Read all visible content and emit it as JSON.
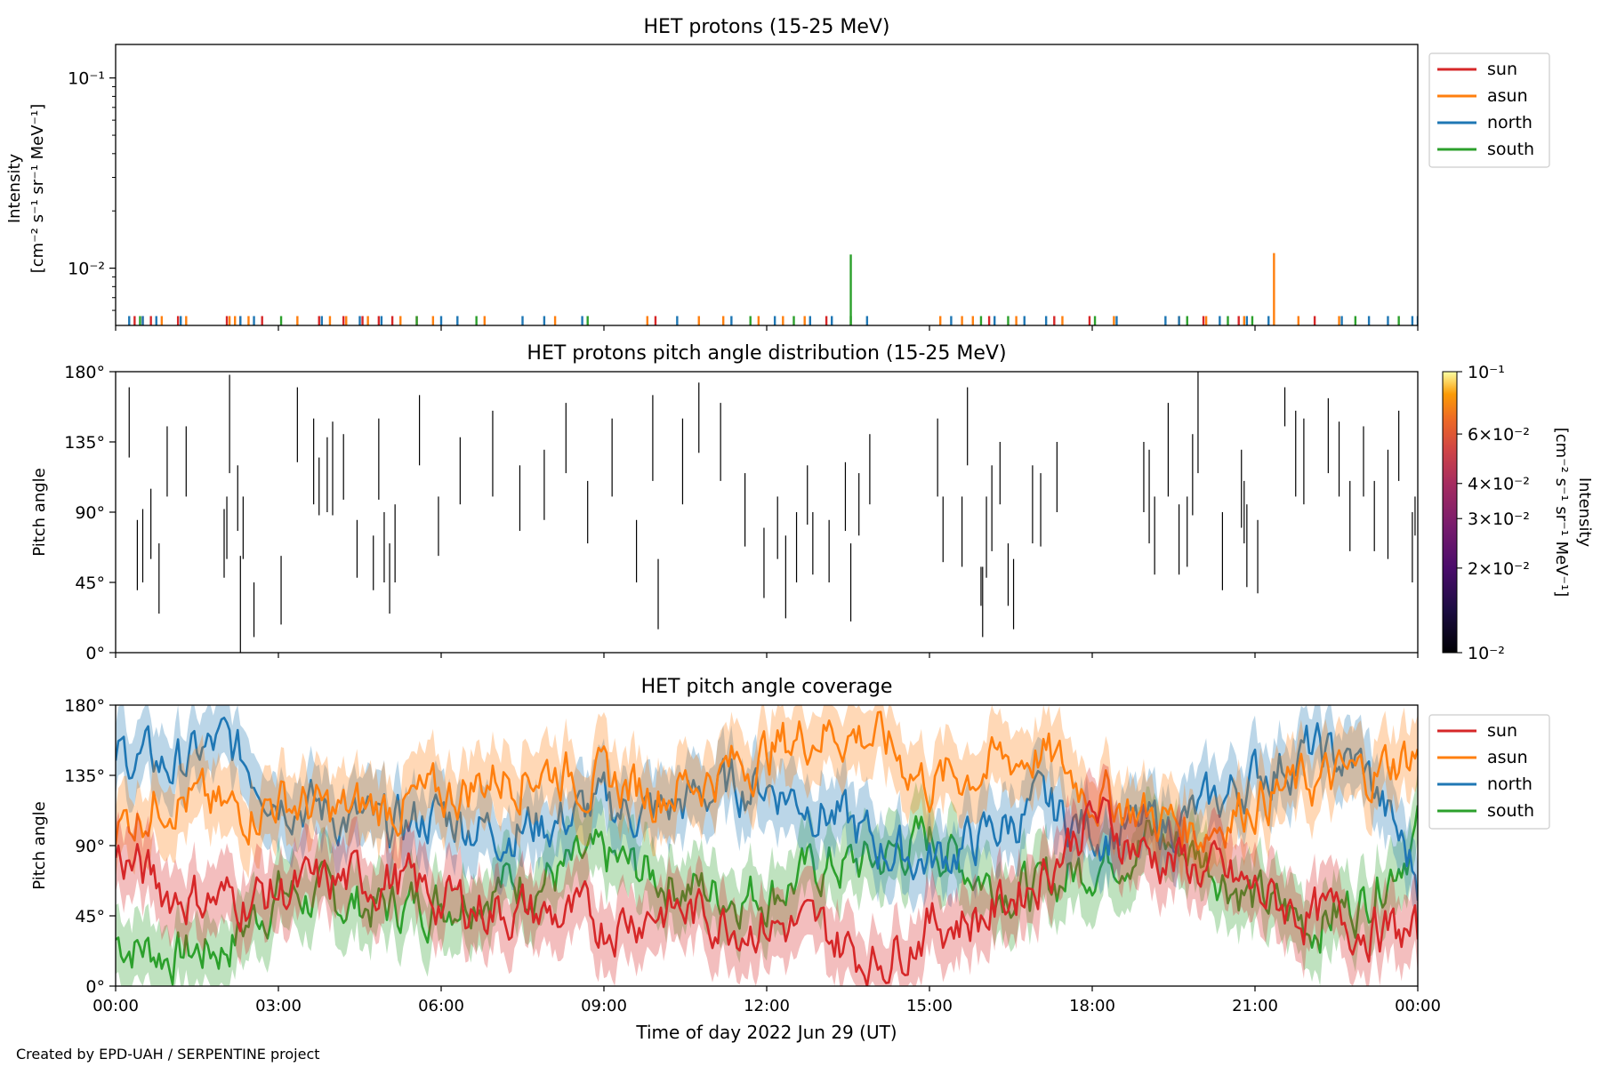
{
  "footer": "Created by EPD-UAH / SERPENTINE project",
  "xlabel": "Time of day 2022 Jun 29 (UT)",
  "time_ticks": [
    "00:00",
    "03:00",
    "06:00",
    "09:00",
    "12:00",
    "15:00",
    "18:00",
    "21:00",
    "00:00"
  ],
  "colors": {
    "sun": "#d62728",
    "asun": "#ff7f0e",
    "north": "#1f77b4",
    "south": "#2ca02c"
  },
  "chart_data": [
    {
      "type": "line",
      "title": "HET protons (15-25 MeV)",
      "ylabel_line1": "Intensity",
      "ylabel_line2": "[cm⁻² s⁻¹ sr⁻¹ MeV⁻¹]",
      "yscale": "log",
      "ylim": [
        0.005,
        0.15
      ],
      "y_ticks": [
        {
          "value": 0.1,
          "label": "10⁻¹"
        },
        {
          "value": 0.01,
          "label": "10⁻²"
        }
      ],
      "xlim_hours": [
        0,
        24
      ],
      "legend": {
        "placement": "outside-right-top",
        "entries": [
          "sun",
          "asun",
          "north",
          "south"
        ]
      },
      "series": [
        {
          "name": "sun",
          "key": "sun",
          "x_hours": [
            0.35,
            0.5,
            0.65,
            1.15,
            2.05,
            2.3,
            2.7,
            3.75,
            4.2,
            4.55,
            4.85,
            5.1,
            5.55,
            9.95,
            13.1,
            16.1,
            17.3,
            17.95,
            20.05,
            20.7,
            22.1
          ],
          "values": [
            0.0056,
            0.0056,
            0.0056,
            0.0056,
            0.0056,
            0.0056,
            0.0056,
            0.0056,
            0.0056,
            0.0056,
            0.0056,
            0.0056,
            0.0056,
            0.0056,
            0.0056,
            0.0056,
            0.0056,
            0.0056,
            0.0056,
            0.0056,
            0.0056
          ]
        },
        {
          "name": "asun",
          "key": "asun",
          "x_hours": [
            0.85,
            1.3,
            2.1,
            2.2,
            2.45,
            3.35,
            3.95,
            4.25,
            4.65,
            5.25,
            5.85,
            6.8,
            8.1,
            9.8,
            10.75,
            11.2,
            11.85,
            12.3,
            12.7,
            15.2,
            15.6,
            15.8,
            16.6,
            17.45,
            18.4,
            19.6,
            20.1,
            20.8,
            21.35,
            21.8,
            22.55
          ],
          "values": [
            0.0056,
            0.0056,
            0.0056,
            0.0056,
            0.0056,
            0.0056,
            0.0056,
            0.0056,
            0.0056,
            0.0056,
            0.0056,
            0.0056,
            0.0056,
            0.0056,
            0.0056,
            0.0056,
            0.0056,
            0.0056,
            0.0056,
            0.0056,
            0.0056,
            0.0056,
            0.0056,
            0.0056,
            0.0056,
            0.0056,
            0.0056,
            0.0056,
            0.012,
            0.0056,
            0.0056
          ]
        },
        {
          "name": "north",
          "key": "north",
          "x_hours": [
            0.25,
            0.5,
            0.75,
            1.2,
            2.3,
            2.55,
            3.8,
            4.5,
            4.9,
            6.0,
            6.3,
            7.5,
            7.9,
            8.6,
            10.35,
            11.35,
            12.15,
            12.8,
            13.2,
            13.85,
            15.4,
            16.2,
            16.75,
            17.15,
            18.45,
            19.35,
            19.6,
            20.35,
            20.85,
            21.25,
            22.6,
            23.1,
            23.45,
            23.9,
            24.0
          ],
          "values": [
            0.0056,
            0.0056,
            0.0056,
            0.0056,
            0.0056,
            0.0056,
            0.0056,
            0.0056,
            0.0056,
            0.0056,
            0.0056,
            0.0056,
            0.0056,
            0.0056,
            0.0056,
            0.0056,
            0.0056,
            0.0056,
            0.0056,
            0.0056,
            0.0056,
            0.0056,
            0.0056,
            0.0056,
            0.0056,
            0.0056,
            0.0056,
            0.0056,
            0.0056,
            0.0056,
            0.0056,
            0.0056,
            0.0056,
            0.0056,
            0.0056
          ]
        },
        {
          "name": "south",
          "key": "south",
          "x_hours": [
            0.45,
            3.05,
            5.55,
            6.65,
            8.7,
            11.7,
            12.5,
            13.55,
            13.55,
            15.95,
            16.45,
            18.05,
            19.75,
            20.5,
            20.95,
            22.85,
            23.65
          ],
          "values": [
            0.0056,
            0.0056,
            0.0056,
            0.0056,
            0.0056,
            0.0056,
            0.0056,
            0.0056,
            0.0118,
            0.0056,
            0.0056,
            0.0056,
            0.0056,
            0.0056,
            0.0056,
            0.0056,
            0.0056
          ]
        }
      ]
    },
    {
      "type": "heatmap",
      "title": "HET protons pitch angle distribution (15-25 MeV)",
      "ylabel": "Pitch angle",
      "y_ticks": [
        "0°",
        "45°",
        "90°",
        "135°",
        "180°"
      ],
      "ylim": [
        0,
        180
      ],
      "xlim_hours": [
        0,
        24
      ],
      "colorbar": {
        "label": "Intensity",
        "unit": "[cm⁻² s⁻¹ sr⁻¹ MeV⁻¹]",
        "scale": "log",
        "range": [
          0.01,
          0.1
        ],
        "colormap": "inferno",
        "ticks": [
          "10⁻¹",
          "6×10⁻²",
          "4×10⁻²",
          "3×10⁻²",
          "2×10⁻²",
          "10⁻²"
        ]
      },
      "marks": [
        [
          0.25,
          125,
          170
        ],
        [
          0.4,
          40,
          85
        ],
        [
          0.5,
          45,
          92
        ],
        [
          0.65,
          60,
          105
        ],
        [
          0.8,
          25,
          70
        ],
        [
          0.95,
          100,
          145
        ],
        [
          1.3,
          100,
          145
        ],
        [
          2.0,
          48,
          92
        ],
        [
          2.05,
          60,
          100
        ],
        [
          2.1,
          115,
          178
        ],
        [
          2.25,
          78,
          120
        ],
        [
          2.3,
          0,
          62
        ],
        [
          2.35,
          60,
          100
        ],
        [
          2.55,
          10,
          45
        ],
        [
          3.05,
          18,
          62
        ],
        [
          3.35,
          122,
          170
        ],
        [
          3.65,
          95,
          150
        ],
        [
          3.75,
          88,
          125
        ],
        [
          3.9,
          90,
          138
        ],
        [
          4.0,
          88,
          148
        ],
        [
          4.2,
          98,
          140
        ],
        [
          4.45,
          48,
          85
        ],
        [
          4.75,
          40,
          75
        ],
        [
          4.85,
          98,
          150
        ],
        [
          4.95,
          45,
          90
        ],
        [
          5.05,
          25,
          70
        ],
        [
          5.15,
          45,
          95
        ],
        [
          5.6,
          120,
          165
        ],
        [
          5.95,
          62,
          100
        ],
        [
          6.35,
          95,
          138
        ],
        [
          6.95,
          100,
          155
        ],
        [
          7.45,
          78,
          120
        ],
        [
          7.9,
          85,
          130
        ],
        [
          8.3,
          115,
          160
        ],
        [
          8.7,
          70,
          110
        ],
        [
          9.15,
          100,
          150
        ],
        [
          9.6,
          45,
          85
        ],
        [
          9.9,
          110,
          165
        ],
        [
          10.0,
          15,
          60
        ],
        [
          10.45,
          95,
          150
        ],
        [
          10.75,
          128,
          173
        ],
        [
          11.15,
          110,
          160
        ],
        [
          11.6,
          68,
          115
        ],
        [
          11.95,
          35,
          80
        ],
        [
          12.2,
          60,
          100
        ],
        [
          12.35,
          22,
          75
        ],
        [
          12.55,
          45,
          90
        ],
        [
          12.75,
          82,
          120
        ],
        [
          12.85,
          50,
          90
        ],
        [
          13.15,
          45,
          85
        ],
        [
          13.45,
          78,
          122
        ],
        [
          13.55,
          20,
          70
        ],
        [
          13.7,
          75,
          115
        ],
        [
          13.9,
          95,
          140
        ],
        [
          15.15,
          100,
          150
        ],
        [
          15.25,
          58,
          100
        ],
        [
          15.6,
          55,
          100
        ],
        [
          15.7,
          120,
          170
        ],
        [
          15.95,
          30,
          55
        ],
        [
          15.98,
          10,
          55
        ],
        [
          16.05,
          48,
          100
        ],
        [
          16.15,
          65,
          120
        ],
        [
          16.3,
          95,
          135
        ],
        [
          16.45,
          30,
          70
        ],
        [
          16.55,
          15,
          60
        ],
        [
          16.9,
          70,
          120
        ],
        [
          17.05,
          68,
          115
        ],
        [
          17.35,
          90,
          135
        ],
        [
          18.95,
          90,
          135
        ],
        [
          19.05,
          70,
          130
        ],
        [
          19.15,
          50,
          100
        ],
        [
          19.4,
          100,
          160
        ],
        [
          19.6,
          50,
          95
        ],
        [
          19.75,
          55,
          100
        ],
        [
          19.85,
          88,
          140
        ],
        [
          19.95,
          115,
          180
        ],
        [
          20.4,
          40,
          90
        ],
        [
          20.75,
          80,
          130
        ],
        [
          20.8,
          70,
          110
        ],
        [
          20.85,
          42,
          95
        ],
        [
          21.05,
          38,
          85
        ],
        [
          21.55,
          145,
          170
        ],
        [
          21.75,
          100,
          155
        ],
        [
          21.9,
          95,
          150
        ],
        [
          22.35,
          115,
          163
        ],
        [
          22.55,
          100,
          148
        ],
        [
          22.75,
          65,
          110
        ],
        [
          23.0,
          100,
          145
        ],
        [
          23.2,
          65,
          110
        ],
        [
          23.45,
          60,
          130
        ],
        [
          23.65,
          110,
          155
        ],
        [
          23.9,
          45,
          90
        ],
        [
          23.95,
          75,
          100
        ]
      ]
    },
    {
      "type": "line",
      "title": "HET pitch angle coverage",
      "ylabel": "Pitch angle",
      "y_ticks": [
        "0°",
        "45°",
        "90°",
        "135°",
        "180°"
      ],
      "ylim": [
        0,
        180
      ],
      "xlim_hours": [
        0,
        24
      ],
      "legend": {
        "placement": "outside-right-top",
        "entries": [
          "sun",
          "asun",
          "north",
          "south"
        ]
      },
      "band_note": "shaded band around each series",
      "series": [
        {
          "name": "sun",
          "key": "sun",
          "x_hours": [
            0,
            1,
            2,
            3,
            4,
            5,
            6,
            7,
            8,
            9,
            10,
            11,
            12,
            13,
            14,
            15,
            16,
            17,
            18,
            19,
            20,
            21,
            22,
            23,
            24
          ],
          "values": [
            85,
            60,
            55,
            60,
            65,
            70,
            55,
            50,
            45,
            40,
            50,
            45,
            40,
            35,
            15,
            40,
            45,
            70,
            110,
            85,
            75,
            60,
            45,
            40,
            30
          ]
        },
        {
          "name": "asun",
          "key": "asun",
          "x_hours": [
            0,
            1,
            2,
            3,
            4,
            5,
            6,
            7,
            8,
            9,
            10,
            11,
            12,
            13,
            14,
            15,
            16,
            17,
            18,
            19,
            20,
            21,
            22,
            23,
            24
          ],
          "values": [
            100,
            125,
            110,
            120,
            110,
            115,
            120,
            135,
            140,
            130,
            125,
            135,
            150,
            165,
            160,
            130,
            140,
            150,
            125,
            110,
            100,
            120,
            130,
            135,
            150
          ]
        },
        {
          "name": "north",
          "key": "north",
          "x_hours": [
            0,
            1,
            2,
            3,
            4,
            5,
            6,
            7,
            8,
            9,
            10,
            11,
            12,
            13,
            14,
            15,
            16,
            17,
            18,
            19,
            20,
            21,
            22,
            23,
            24
          ],
          "values": [
            150,
            140,
            155,
            125,
            110,
            100,
            110,
            100,
            105,
            115,
            110,
            125,
            130,
            115,
            90,
            80,
            95,
            115,
            100,
            100,
            110,
            135,
            150,
            140,
            70
          ]
        },
        {
          "name": "south",
          "key": "south",
          "x_hours": [
            0,
            1,
            2,
            3,
            4,
            5,
            6,
            7,
            8,
            9,
            10,
            11,
            12,
            13,
            14,
            15,
            16,
            17,
            18,
            19,
            20,
            21,
            22,
            23,
            24
          ],
          "values": [
            30,
            20,
            25,
            60,
            55,
            50,
            55,
            65,
            70,
            80,
            70,
            60,
            60,
            75,
            80,
            95,
            70,
            60,
            80,
            95,
            85,
            55,
            40,
            55,
            100
          ]
        }
      ]
    }
  ]
}
